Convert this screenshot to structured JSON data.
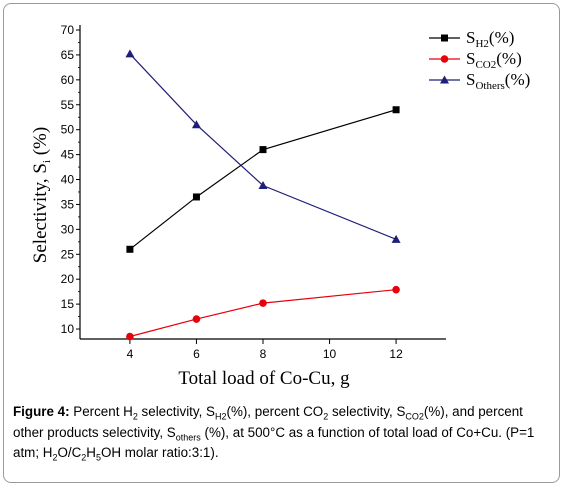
{
  "chart_data": {
    "type": "line",
    "x": [
      4,
      6,
      8,
      12
    ],
    "series": [
      {
        "name": "S",
        "sub": "H2",
        "suffix": "(%)",
        "color": "#000000",
        "marker": "square",
        "values": [
          26,
          36.5,
          46,
          54
        ]
      },
      {
        "name": "S",
        "sub": "CO2",
        "suffix": "(%)",
        "color": "#e8000b",
        "marker": "circle",
        "values": [
          8.5,
          12,
          15.2,
          17.9
        ]
      },
      {
        "name": "S",
        "sub": "Others",
        "suffix": "(%)",
        "color": "#1f1f7a",
        "marker": "triangle",
        "values": [
          65.2,
          51,
          38.8,
          28
        ]
      }
    ],
    "xticks": [
      4,
      6,
      8,
      10,
      12
    ],
    "yticks": [
      10,
      15,
      20,
      25,
      30,
      35,
      40,
      45,
      50,
      55,
      60,
      65,
      70
    ],
    "xlim": [
      2.5,
      13.5
    ],
    "ylim": [
      8,
      70
    ],
    "xlabel": "Total load of Co-Cu, g",
    "ylabel_main": "Selectivity, S",
    "ylabel_sub": "i",
    "ylabel_suffix": " (%)",
    "legend_position": "top-right"
  },
  "caption": {
    "figure_label": "Figure 4:",
    "t1": " Percent H",
    "s1": "2",
    "t2": " selectivity, S",
    "s2": "H2",
    "t3": "(%), percent CO",
    "s3": "2",
    "t4": " selectivity, S",
    "s4": "CO2",
    "t5": "(%), and percent other products selectivity, S",
    "s5": "others",
    "t6": " (%), at 500°C as a function of total load of Co+Cu. (P=1 atm;  H",
    "s6": "2",
    "t7": "O/C",
    "s7": "2",
    "t8": "H",
    "s8": "5",
    "t9": "OH molar ratio:3:1)."
  }
}
